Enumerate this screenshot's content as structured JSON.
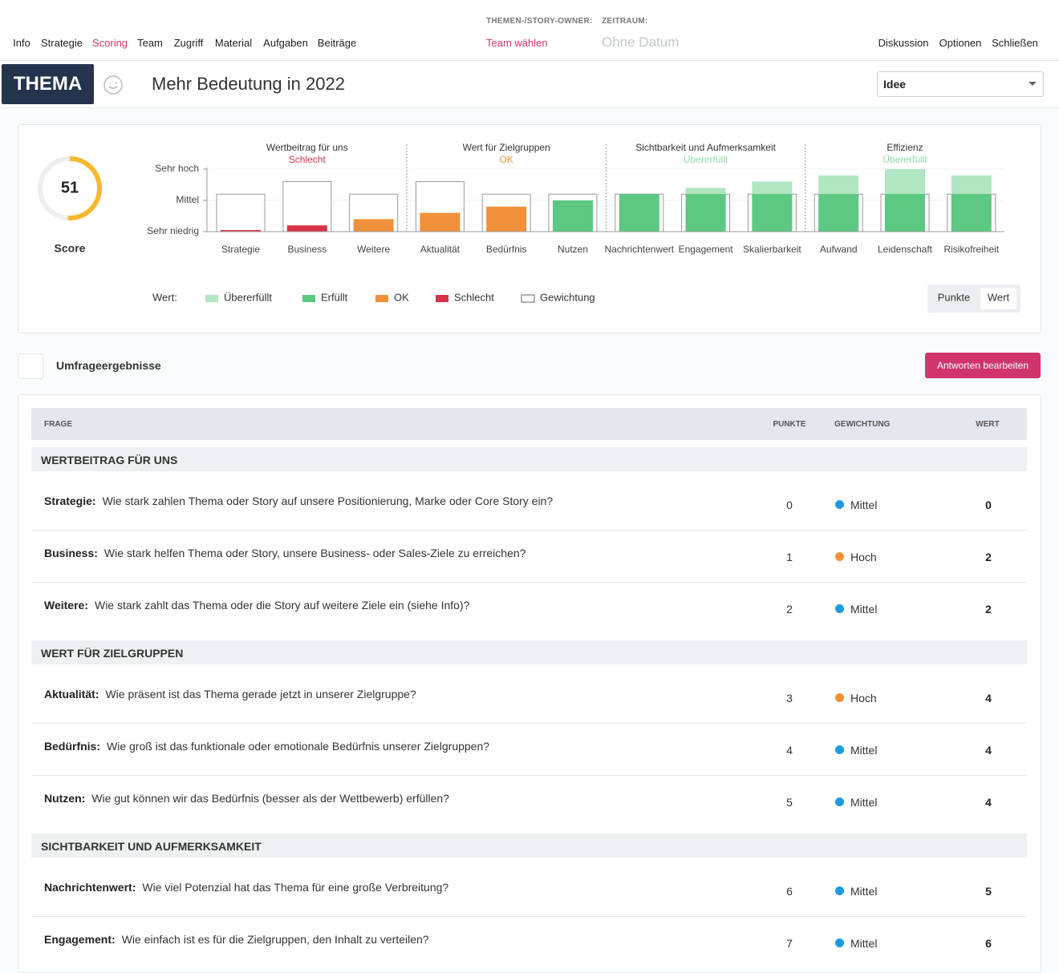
{
  "nav": {
    "items": [
      "Info",
      "Strategie",
      "Scoring",
      "Team",
      "Zugriff",
      "Material",
      "Aufgaben",
      "Beiträge"
    ],
    "active": 2,
    "active_color": "#d6336c",
    "owner_label": "THEMEN-/STORY-OWNER:",
    "owner_value": "Team wählen",
    "period_label": "ZEITRAUM:",
    "period_value": "Ohne Datum",
    "right": [
      "Diskussion",
      "Optionen",
      "Schließen"
    ]
  },
  "header": {
    "badge": "THEMA",
    "title": "Mehr Bedeutung in 2022",
    "status": "Idee"
  },
  "chart_data": {
    "type": "bar",
    "score": {
      "value": 51,
      "lim": [
        0,
        100
      ],
      "label": "Score",
      "color": "#f7b731"
    },
    "ylim": [
      0,
      10
    ],
    "yticks": [
      {
        "value": 0,
        "label": "Sehr niedrig"
      },
      {
        "value": 5,
        "label": "Mittel"
      },
      {
        "value": 10,
        "label": "Sehr hoch"
      }
    ],
    "grid": true,
    "groups": [
      {
        "title": "Wertbeitrag für uns",
        "status": "Schlecht",
        "status_color": "#d63447",
        "bars": [
          {
            "label": "Strategie",
            "value": 0,
            "weight": 6,
            "color": "#d63447"
          },
          {
            "label": "Business",
            "value": 1,
            "weight": 8,
            "color": "#d63447"
          },
          {
            "label": "Weitere",
            "value": 2,
            "weight": 6,
            "color": "#f0913a"
          }
        ]
      },
      {
        "title": "Wert für Zielgruppen",
        "status": "OK",
        "status_color": "#f0913a",
        "bars": [
          {
            "label": "Aktualität",
            "value": 3,
            "weight": 8,
            "color": "#f0913a"
          },
          {
            "label": "Bedürfnis",
            "value": 4,
            "weight": 6,
            "color": "#f0913a"
          },
          {
            "label": "Nutzen",
            "value": 5,
            "weight": 6,
            "color": "#5cc882"
          }
        ]
      },
      {
        "title": "Sichtbarkeit und Aufmerksamkeit",
        "status": "Übererfüllt",
        "status_color": "#8fdca7",
        "bars": [
          {
            "label": "Nachrichtenwert",
            "value": 6,
            "weight": 6,
            "color": "#5cc882"
          },
          {
            "label": "Engagement",
            "value": 7,
            "weight": 6,
            "color": "#5cc882"
          },
          {
            "label": "Skalierbarkeit",
            "value": 8,
            "weight": 6,
            "color": "#5cc882"
          }
        ]
      },
      {
        "title": "Effizienz",
        "status": "Übererfüllt",
        "status_color": "#8fdca7",
        "bars": [
          {
            "label": "Aufwand",
            "value": 9,
            "weight": 6,
            "color": "#5cc882"
          },
          {
            "label": "Leidenschaft",
            "value": 10,
            "weight": 6,
            "color": "#5cc882"
          },
          {
            "label": "Risikofreiheit",
            "value": 9,
            "weight": 6,
            "color": "#5cc882"
          }
        ]
      }
    ],
    "legend": {
      "title": "Wert:",
      "items": [
        {
          "name": "Übererfüllt",
          "color": "#b0e6c2"
        },
        {
          "name": "Erfüllt",
          "color": "#5cc882"
        },
        {
          "name": "OK",
          "color": "#f0913a"
        },
        {
          "name": "Schlecht",
          "color": "#d63447"
        },
        {
          "name": "Gewichtung",
          "color": "#ffffff"
        }
      ]
    },
    "toggle": {
      "options": [
        "Punkte",
        "Wert"
      ],
      "active": 1
    }
  },
  "survey": {
    "title": "Umfrageergebnisse",
    "button": "Antworten bearbeiten",
    "columns": [
      "FRAGE",
      "PUNKTE",
      "GEWICHTUNG",
      "WERT"
    ],
    "sections": [
      {
        "title": "WERTBEITRAG FÜR UNS",
        "rows": [
          {
            "label": "Strategie:",
            "question": "Wie stark zahlen Thema oder Story auf unsere Positionierung, Marke oder Core Story ein?",
            "points": 0,
            "weight": "Mittel",
            "weight_color": "#1e9be0",
            "value": 0
          },
          {
            "label": "Business:",
            "question": "Wie stark helfen Thema oder Story, unsere Business- oder Sales-Ziele zu erreichen?",
            "points": 1,
            "weight": "Hoch",
            "weight_color": "#f0913a",
            "value": 2
          },
          {
            "label": "Weitere:",
            "question": "Wie stark zahlt das Thema oder die Story auf weitere Ziele ein (siehe Info)?",
            "points": 2,
            "weight": "Mittel",
            "weight_color": "#1e9be0",
            "value": 2
          }
        ]
      },
      {
        "title": "WERT FÜR ZIELGRUPPEN",
        "rows": [
          {
            "label": "Aktualität:",
            "question": "Wie präsent ist das Thema gerade jetzt in unserer Zielgruppe?",
            "points": 3,
            "weight": "Hoch",
            "weight_color": "#f0913a",
            "value": 4
          },
          {
            "label": "Bedürfnis:",
            "question": "Wie groß ist das funktionale oder emotionale Bedürfnis unserer Zielgruppen?",
            "points": 4,
            "weight": "Mittel",
            "weight_color": "#1e9be0",
            "value": 4
          },
          {
            "label": "Nutzen:",
            "question": "Wie gut können wir das Bedürfnis (besser als der Wettbewerb) erfüllen?",
            "points": 5,
            "weight": "Mittel",
            "weight_color": "#1e9be0",
            "value": 4
          }
        ]
      },
      {
        "title": "SICHTBARKEIT UND AUFMERKSAMKEIT",
        "rows": [
          {
            "label": "Nachrichtenwert:",
            "question": "Wie viel Potenzial hat das Thema für eine große Verbreitung?",
            "points": 6,
            "weight": "Mittel",
            "weight_color": "#1e9be0",
            "value": 5
          },
          {
            "label": "Engagement:",
            "question": "Wie einfach ist es für die Zielgruppen, den Inhalt zu verteilen?",
            "points": 7,
            "weight": "Mittel",
            "weight_color": "#1e9be0",
            "value": 6
          }
        ]
      }
    ]
  }
}
